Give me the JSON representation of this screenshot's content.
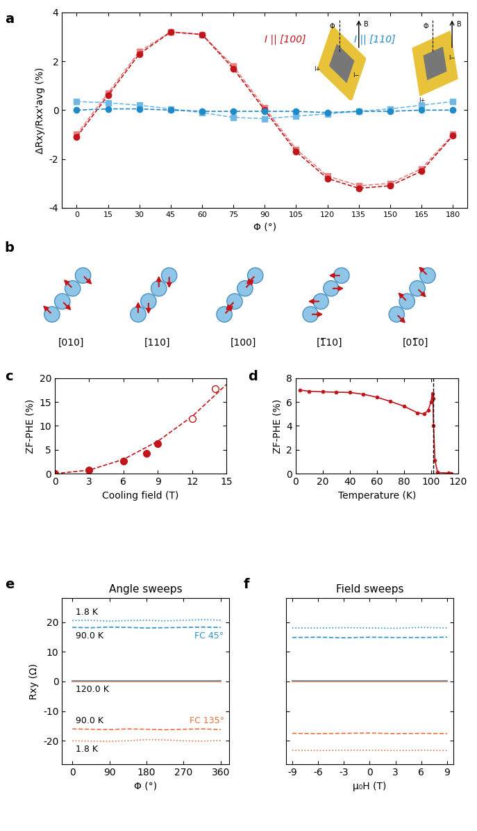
{
  "chart_data": [
    {
      "panel": "a",
      "type": "scatter",
      "x_label": "Φ (°)",
      "y_label": "ΔRxy/Rxx'avg (%)",
      "xlim": [
        -7,
        187
      ],
      "ylim": [
        -4,
        4
      ],
      "xticks": [
        0,
        15,
        30,
        45,
        60,
        75,
        90,
        105,
        120,
        135,
        150,
        165,
        180
      ],
      "yticks": [
        -4,
        -2,
        0,
        2,
        4
      ],
      "x": [
        0,
        15,
        30,
        45,
        60,
        75,
        90,
        105,
        120,
        135,
        150,
        165,
        180
      ],
      "series": [
        {
          "color": "#e88080",
          "marker": "square",
          "line_style": "dashed",
          "values": [
            -1.0,
            0.7,
            2.4,
            3.2,
            3.1,
            1.8,
            0.1,
            -1.6,
            -2.7,
            -3.1,
            -3.0,
            -2.4,
            -1.0
          ]
        },
        {
          "name": "I || [100]",
          "color": "#c0161b",
          "marker": "circle",
          "line_style": "dashed",
          "values": [
            -1.1,
            0.6,
            2.3,
            3.2,
            3.1,
            1.7,
            0.0,
            -1.7,
            -2.8,
            -3.2,
            -3.1,
            -2.5,
            -1.05
          ]
        },
        {
          "color": "#6fb8e6",
          "marker": "square",
          "line_style": "dashed",
          "values": [
            0.35,
            0.3,
            0.2,
            0.05,
            -0.1,
            -0.3,
            -0.35,
            -0.25,
            -0.15,
            -0.05,
            0.05,
            0.2,
            0.35
          ]
        },
        {
          "name": "I || [110]",
          "color": "#1f8ac9",
          "marker": "circle",
          "line_style": "dashed",
          "values": [
            0.0,
            0.05,
            0.05,
            0.0,
            -0.05,
            -0.05,
            -0.05,
            -0.05,
            -0.1,
            -0.05,
            -0.05,
            0.0,
            0.0
          ]
        }
      ],
      "inset_labels": [
        "I+",
        "I−",
        "Φ",
        "B"
      ]
    },
    {
      "panel": "c",
      "type": "scatter",
      "x_label": "Cooling field (T)",
      "y_label": "ZF-PHE (%)",
      "xlim": [
        0,
        15
      ],
      "ylim": [
        0,
        20
      ],
      "xticks": [
        0,
        3,
        6,
        9,
        12,
        15
      ],
      "yticks": [
        0,
        5,
        10,
        15,
        20
      ],
      "series": [
        {
          "color": "#c0161b",
          "marker": "none",
          "line_style": "dashed",
          "x": [
            0,
            3,
            6,
            9,
            12,
            15
          ],
          "values": [
            0,
            0.75,
            3.0,
            6.8,
            12.0,
            18.7
          ]
        },
        {
          "color": "#c0161b",
          "marker": "circle",
          "line_style": "none",
          "x": [
            0,
            3,
            6,
            8,
            9
          ],
          "values": [
            0,
            0.7,
            2.6,
            4.2,
            6.3
          ]
        },
        {
          "color": "#c0161b",
          "marker": "open_circle",
          "line_style": "none",
          "x": [
            12,
            14
          ],
          "values": [
            11.5,
            17.8
          ]
        }
      ]
    },
    {
      "panel": "d",
      "type": "line",
      "x_label": "Temperature (K)",
      "y_label": "ZF-PHE (%)",
      "xlim": [
        0,
        120
      ],
      "ylim": [
        0,
        8
      ],
      "xticks": [
        0,
        20,
        40,
        60,
        80,
        100,
        120
      ],
      "yticks": [
        0,
        2,
        4,
        6,
        8
      ],
      "vline": 101.5,
      "series": [
        {
          "color": "#c0161b",
          "marker": "circle",
          "line_style": "solid",
          "x": [
            3,
            10,
            20,
            30,
            40,
            50,
            60,
            70,
            80,
            90,
            95,
            98,
            100,
            101,
            101.5,
            102,
            103,
            105,
            113,
            115
          ],
          "values": [
            7.0,
            6.9,
            6.85,
            6.82,
            6.8,
            6.65,
            6.4,
            6.05,
            5.65,
            5.1,
            5.0,
            5.3,
            6.0,
            6.7,
            6.3,
            4.0,
            1.1,
            0.1,
            0.05,
            0.0
          ]
        }
      ]
    },
    {
      "panel": "e",
      "type": "line",
      "title": "Angle sweeps",
      "x_label": "Φ (°)",
      "y_label": "Rxy (Ω)",
      "xlim": [
        -25,
        380
      ],
      "ylim": [
        -28,
        28
      ],
      "xticks": [
        0,
        90,
        180,
        270,
        360
      ],
      "yticks": [
        -20,
        -10,
        0,
        10,
        20
      ],
      "x": [
        0,
        45,
        90,
        135,
        180,
        225,
        270,
        315,
        360
      ],
      "series": [
        {
          "name": "1.8 K",
          "color": "#2a8fce",
          "line_style": "dotted",
          "values": [
            20.5,
            20.6,
            20.3,
            20.5,
            20.6,
            20.4,
            20.6,
            20.8,
            20.6
          ]
        },
        {
          "name": "90.0 K",
          "color": "#2a8fce",
          "line_style": "dashed",
          "values": [
            18.2,
            18.1,
            18.3,
            18.2,
            18.0,
            18.1,
            18.2,
            18.3,
            18.2
          ]
        },
        {
          "name": "120.0 K",
          "color": "#2a8fce",
          "line_style": "solid",
          "values": [
            0.1,
            0.1,
            0.1,
            0.1,
            0.1,
            0.1,
            0.1,
            0.1,
            0.1
          ]
        },
        {
          "color": "#e8703a",
          "line_style": "solid",
          "values": [
            -0.1,
            -0.1,
            -0.1,
            -0.1,
            -0.1,
            -0.1,
            -0.1,
            -0.1,
            -0.1
          ]
        },
        {
          "name": "90.0 K",
          "color": "#e8703a",
          "line_style": "dashed",
          "values": [
            -16.0,
            -16.1,
            -16.2,
            -16.0,
            -16.1,
            -16.3,
            -16.1,
            -16.0,
            -16.2
          ]
        },
        {
          "name": "1.8 K",
          "color": "#e8703a",
          "line_style": "dotted",
          "values": [
            -20.0,
            -20.1,
            -20.2,
            -20.0,
            -19.6,
            -19.7,
            -20.0,
            -20.1,
            -19.9
          ]
        }
      ],
      "annotations": [
        {
          "text": "FC 45°",
          "color": "#2a8fce"
        },
        {
          "text": "FC 135°",
          "color": "#e8703a"
        }
      ]
    },
    {
      "panel": "f",
      "type": "line",
      "title": "Field sweeps",
      "x_label": "μ₀H (T)",
      "tick_labels": "x",
      "xlim": [
        -9.7,
        9.7
      ],
      "ylim": [
        -28,
        28
      ],
      "xticks": [
        -9,
        -6,
        -3,
        0,
        3,
        6,
        9
      ],
      "yticks": [
        -20,
        -10,
        0,
        10,
        20
      ],
      "x": [
        -9,
        -6,
        -3,
        0,
        3,
        6,
        9
      ],
      "series": [
        {
          "color": "#2a8fce",
          "line_style": "dotted",
          "values": [
            18.0,
            18.0,
            18.1,
            18.0,
            17.9,
            18.2,
            18.0
          ]
        },
        {
          "color": "#2a8fce",
          "line_style": "dashed",
          "values": [
            14.8,
            14.9,
            14.7,
            14.9,
            14.8,
            14.8,
            14.9
          ]
        },
        {
          "color": "#2a8fce",
          "line_style": "solid",
          "values": [
            0.1,
            0.1,
            0.1,
            0.1,
            0.1,
            0.1,
            0.1
          ]
        },
        {
          "color": "#e8703a",
          "line_style": "solid",
          "values": [
            -0.1,
            -0.1,
            -0.1,
            -0.1,
            -0.1,
            -0.1,
            -0.1
          ]
        },
        {
          "color": "#e8703a",
          "line_style": "dashed",
          "values": [
            -17.5,
            -17.6,
            -17.5,
            -17.4,
            -17.6,
            -17.5,
            -17.6
          ]
        },
        {
          "color": "#e8703a",
          "line_style": "dotted",
          "values": [
            -23.2,
            -23.3,
            -23.2,
            -23.2,
            -23.3,
            -23.2,
            -23.3
          ]
        }
      ]
    }
  ],
  "diagram": {
    "panel": "b",
    "labels": [
      "[010]",
      "[110]",
      "[100]",
      "[1̅10]",
      "[01̅0]"
    ]
  }
}
